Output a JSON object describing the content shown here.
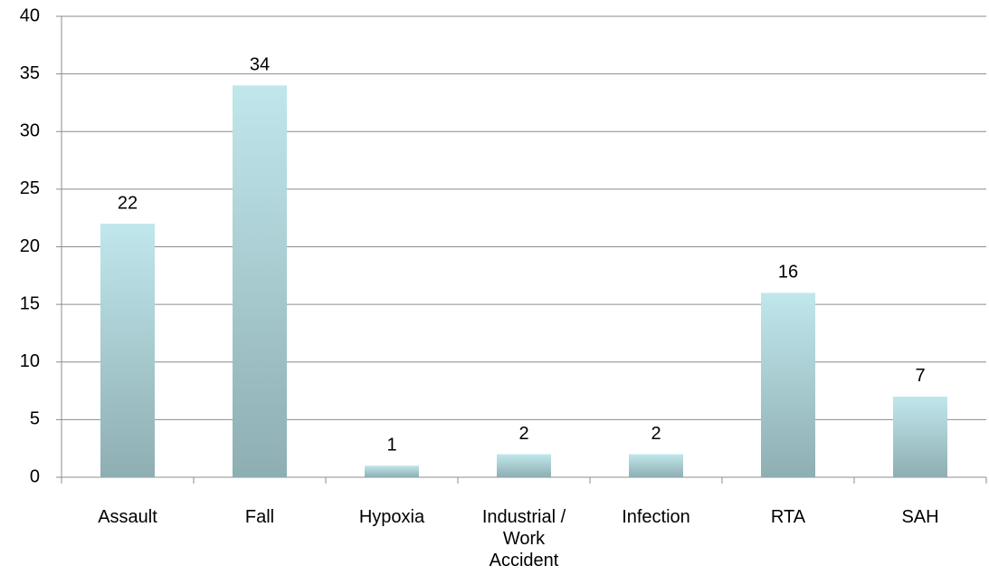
{
  "chart_data": {
    "type": "bar",
    "categories": [
      "Assault",
      "Fall",
      "Hypoxia",
      "Industrial / Work Accident",
      "Infection",
      "RTA",
      "SAH"
    ],
    "values": [
      22,
      34,
      1,
      2,
      2,
      16,
      7
    ],
    "gradient": [
      "#c0e7ec",
      "#8eaeb2"
    ],
    "ylim": [
      0,
      40
    ],
    "yticks": [
      0,
      5,
      10,
      15,
      20,
      25,
      30,
      35,
      40
    ],
    "grid": true
  }
}
